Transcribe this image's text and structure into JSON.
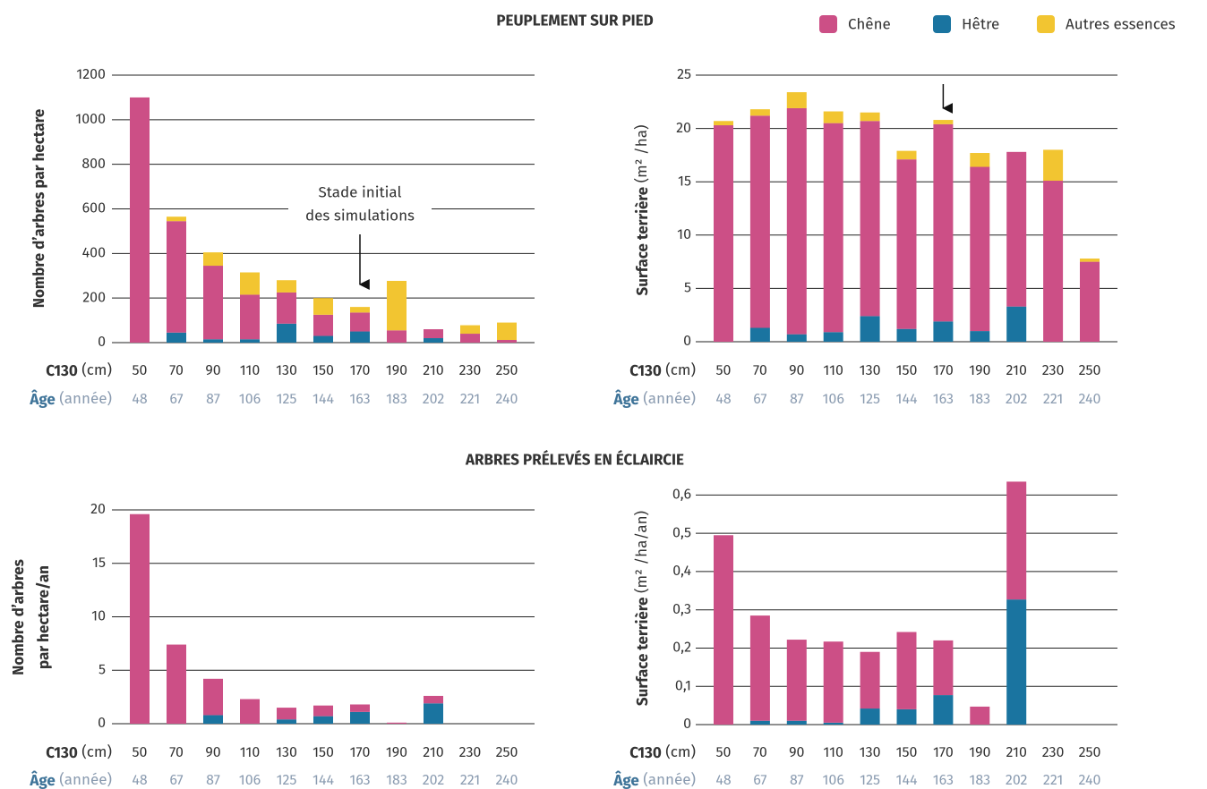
{
  "chart_data": [
    {
      "type": "bar",
      "stacked": true,
      "title": "PEUPLEMENT SUR PIED",
      "ylabel": [
        "Nombre d’arbres par hectare"
      ],
      "x_label": "C130",
      "x_unit": "(cm)",
      "x2_label": "Âge",
      "x2_unit": "(année)",
      "categories": [
        "50",
        "70",
        "90",
        "110",
        "130",
        "150",
        "170",
        "190",
        "210",
        "230",
        "250"
      ],
      "categories2": [
        "48",
        "67",
        "87",
        "106",
        "125",
        "144",
        "163",
        "183",
        "202",
        "221",
        "240"
      ],
      "annotation": [
        "Stade initial",
        "des simulations"
      ],
      "ylim": [
        0,
        1200
      ],
      "yticks": [
        0,
        200,
        400,
        600,
        800,
        1000,
        1200
      ],
      "grid": true,
      "series": [
        {
          "name": "Hêtre",
          "color": "#1a74a0",
          "values": [
            0,
            45,
            15,
            15,
            85,
            30,
            50,
            0,
            20,
            0,
            0
          ]
        },
        {
          "name": "Chêne",
          "color": "#cc4f86",
          "values": [
            1100,
            500,
            330,
            200,
            140,
            95,
            85,
            55,
            40,
            40,
            12
          ]
        },
        {
          "name": "Autres essences",
          "color": "#f2c531",
          "values": [
            0,
            20,
            60,
            100,
            55,
            75,
            25,
            222,
            0,
            38,
            78
          ]
        }
      ]
    },
    {
      "type": "bar",
      "stacked": true,
      "ylabel": [
        "Surface terrière"
      ],
      "ylabel_unit": "(m² /ha)",
      "x_label": "C130",
      "x_unit": "(cm)",
      "x2_label": "Âge",
      "x2_unit": "(année)",
      "categories": [
        "50",
        "70",
        "90",
        "110",
        "130",
        "150",
        "170",
        "190",
        "210",
        "230",
        "250"
      ],
      "categories2": [
        "48",
        "67",
        "87",
        "106",
        "125",
        "144",
        "163",
        "183",
        "202",
        "221",
        "240"
      ],
      "ylim": [
        0,
        25
      ],
      "yticks": [
        0,
        5,
        10,
        15,
        20,
        25
      ],
      "grid": true,
      "series": [
        {
          "name": "Hêtre",
          "color": "#1a74a0",
          "values": [
            0,
            1.3,
            0.7,
            0.9,
            2.4,
            1.2,
            1.9,
            1.0,
            3.3,
            0,
            0
          ]
        },
        {
          "name": "Chêne",
          "color": "#cc4f86",
          "values": [
            20.3,
            19.9,
            21.2,
            19.6,
            18.3,
            15.9,
            18.5,
            15.4,
            14.5,
            15.1,
            7.5
          ]
        },
        {
          "name": "Autres essences",
          "color": "#f2c531",
          "values": [
            0.4,
            0.6,
            1.5,
            1.1,
            0.8,
            0.8,
            0.4,
            1.3,
            0,
            2.9,
            0.3
          ]
        }
      ]
    },
    {
      "type": "bar",
      "stacked": true,
      "title": "ARBRES PRÉLEVÉS EN ÉCLAIRCIE",
      "ylabel": [
        "Nombre d’arbres",
        "par hectare/an"
      ],
      "x_label": "C130",
      "x_unit": "(cm)",
      "x2_label": "Âge",
      "x2_unit": "(année)",
      "categories": [
        "50",
        "70",
        "90",
        "110",
        "130",
        "150",
        "170",
        "190",
        "210",
        "230",
        "250"
      ],
      "categories2": [
        "48",
        "67",
        "87",
        "106",
        "125",
        "144",
        "163",
        "183",
        "202",
        "221",
        "240"
      ],
      "ylim": [
        0,
        21
      ],
      "yticks": [
        0,
        5,
        10,
        15,
        20
      ],
      "grid": true,
      "series": [
        {
          "name": "Hêtre",
          "color": "#1a74a0",
          "values": [
            0,
            0,
            0.8,
            0,
            0.4,
            0.7,
            1.1,
            0,
            1.9,
            0,
            0
          ]
        },
        {
          "name": "Chêne",
          "color": "#cc4f86",
          "values": [
            19.6,
            7.4,
            3.4,
            2.3,
            1.1,
            1.0,
            0.7,
            0.1,
            0.7,
            0,
            0
          ]
        },
        {
          "name": "Autres essences",
          "color": "#f2c531",
          "values": [
            0,
            0,
            0,
            0,
            0,
            0,
            0,
            0,
            0,
            0,
            0
          ]
        }
      ]
    },
    {
      "type": "bar",
      "stacked": true,
      "ylabel": [
        "Surface terrière"
      ],
      "ylabel_unit": "(m² /ha/an)",
      "x_label": "C130",
      "x_unit": "(cm)",
      "x2_label": "Âge",
      "x2_unit": "(année)",
      "categories": [
        "50",
        "70",
        "90",
        "110",
        "130",
        "150",
        "170",
        "190",
        "210",
        "230",
        "250"
      ],
      "categories2": [
        "48",
        "67",
        "87",
        "106",
        "125",
        "144",
        "163",
        "183",
        "202",
        "221",
        "240"
      ],
      "ylim": [
        0,
        0.65
      ],
      "yticks": [
        0,
        {
          "value": 0.1,
          "label": "0,1"
        },
        {
          "value": 0.2,
          "label": "0,2"
        },
        {
          "value": 0.3,
          "label": "0,3"
        },
        {
          "value": 0.4,
          "label": "0,4"
        },
        {
          "value": 0.5,
          "label": "0,5"
        },
        {
          "value": 0.6,
          "label": "0,6"
        }
      ],
      "grid": true,
      "series": [
        {
          "name": "Hêtre",
          "color": "#1a74a0",
          "values": [
            0,
            0.01,
            0.01,
            0.005,
            0.042,
            0.04,
            0.077,
            0,
            0.327,
            0,
            0
          ]
        },
        {
          "name": "Chêne",
          "color": "#cc4f86",
          "values": [
            0.495,
            0.275,
            0.212,
            0.212,
            0.148,
            0.202,
            0.143,
            0.047,
            0.308,
            0,
            0
          ]
        },
        {
          "name": "Autres essences",
          "color": "#f2c531",
          "values": [
            0,
            0,
            0,
            0,
            0,
            0,
            0,
            0,
            0,
            0,
            0
          ]
        }
      ]
    }
  ]
}
